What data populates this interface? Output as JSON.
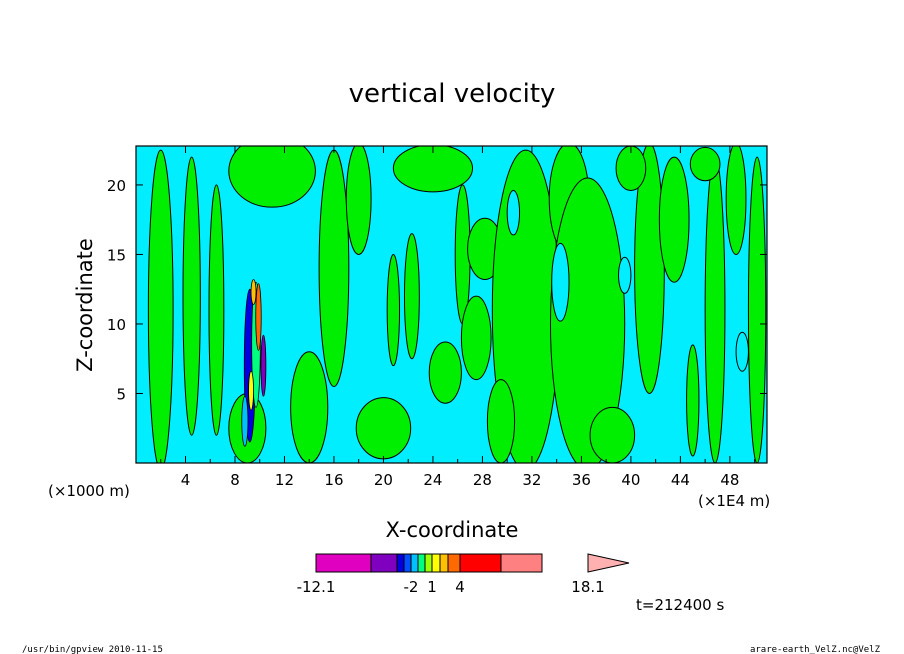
{
  "chart_data": {
    "type": "heatmap",
    "title": "vertical velocity",
    "xlabel": "X-coordinate",
    "ylabel": "Z-coordinate",
    "x_unit_left": "(×1000 m)",
    "x_unit_right": "(×1E4 m)",
    "xlim": [
      0,
      51
    ],
    "ylim": [
      0,
      22.8
    ],
    "xticks": [
      "4",
      "8",
      "12",
      "16",
      "20",
      "24",
      "28",
      "32",
      "36",
      "40",
      "44",
      "48"
    ],
    "yticks": [
      "5",
      "10",
      "15",
      "20"
    ],
    "colorbar": {
      "levels": [
        "-12.1",
        "-2",
        "1",
        "4",
        "18.1"
      ],
      "colors": [
        "#e000c0",
        "#8000c0",
        "#0000e0",
        "#0050ff",
        "#00c0ff",
        "#00ff80",
        "#a0ff00",
        "#ffff00",
        "#ffc000",
        "#ff6a00",
        "#ff0000",
        "#ff8080",
        "#ffb0b0"
      ]
    },
    "time_label": "t=212400 s",
    "colors": {
      "positive_weak": "#00ee00",
      "negative_weak": "#00eeff"
    },
    "footer_left": "/usr/bin/gpview   2010-11-15",
    "footer_right": "arare-earth_VelZ.nc@VelZ"
  }
}
